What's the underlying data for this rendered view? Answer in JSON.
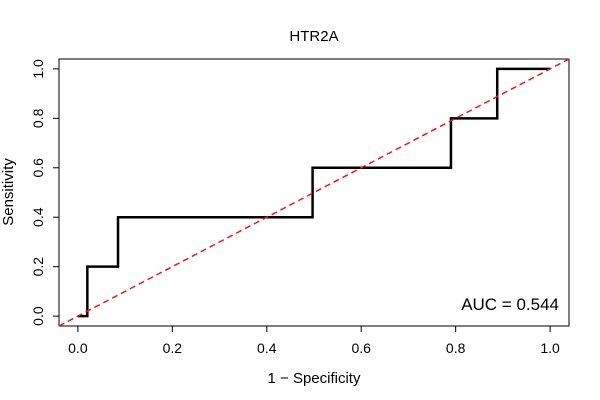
{
  "chart_data": {
    "type": "line",
    "title": "HTR2A",
    "xlabel": "1 − Specificity",
    "ylabel": "Sensitivity",
    "xlim": [
      -0.04,
      1.04
    ],
    "ylim": [
      -0.04,
      1.04
    ],
    "x_ticks": [
      0.0,
      0.2,
      0.4,
      0.6,
      0.8,
      1.0
    ],
    "x_tick_labels": [
      "0.0",
      "0.2",
      "0.4",
      "0.6",
      "0.8",
      "1.0"
    ],
    "y_ticks": [
      0.0,
      0.2,
      0.4,
      0.6,
      0.8,
      1.0
    ],
    "y_tick_labels": [
      "0.0",
      "0.2",
      "0.4",
      "0.6",
      "0.8",
      "1.0"
    ],
    "grid": false,
    "series": [
      {
        "line_color": "#000000",
        "style": "solid",
        "x": [
          0.0,
          0.02,
          0.02,
          0.085,
          0.085,
          0.497,
          0.497,
          0.79,
          0.79,
          0.888,
          0.888,
          1.0
        ],
        "y": [
          0.0,
          0.0,
          0.2,
          0.2,
          0.4,
          0.4,
          0.6,
          0.6,
          0.8,
          0.8,
          1.0,
          1.0
        ]
      },
      {
        "line_color": "#e8191c",
        "style": "dashed",
        "x": [
          -0.04,
          1.04
        ],
        "y": [
          -0.04,
          1.04
        ]
      }
    ],
    "annotation": "AUC = 0.544"
  }
}
